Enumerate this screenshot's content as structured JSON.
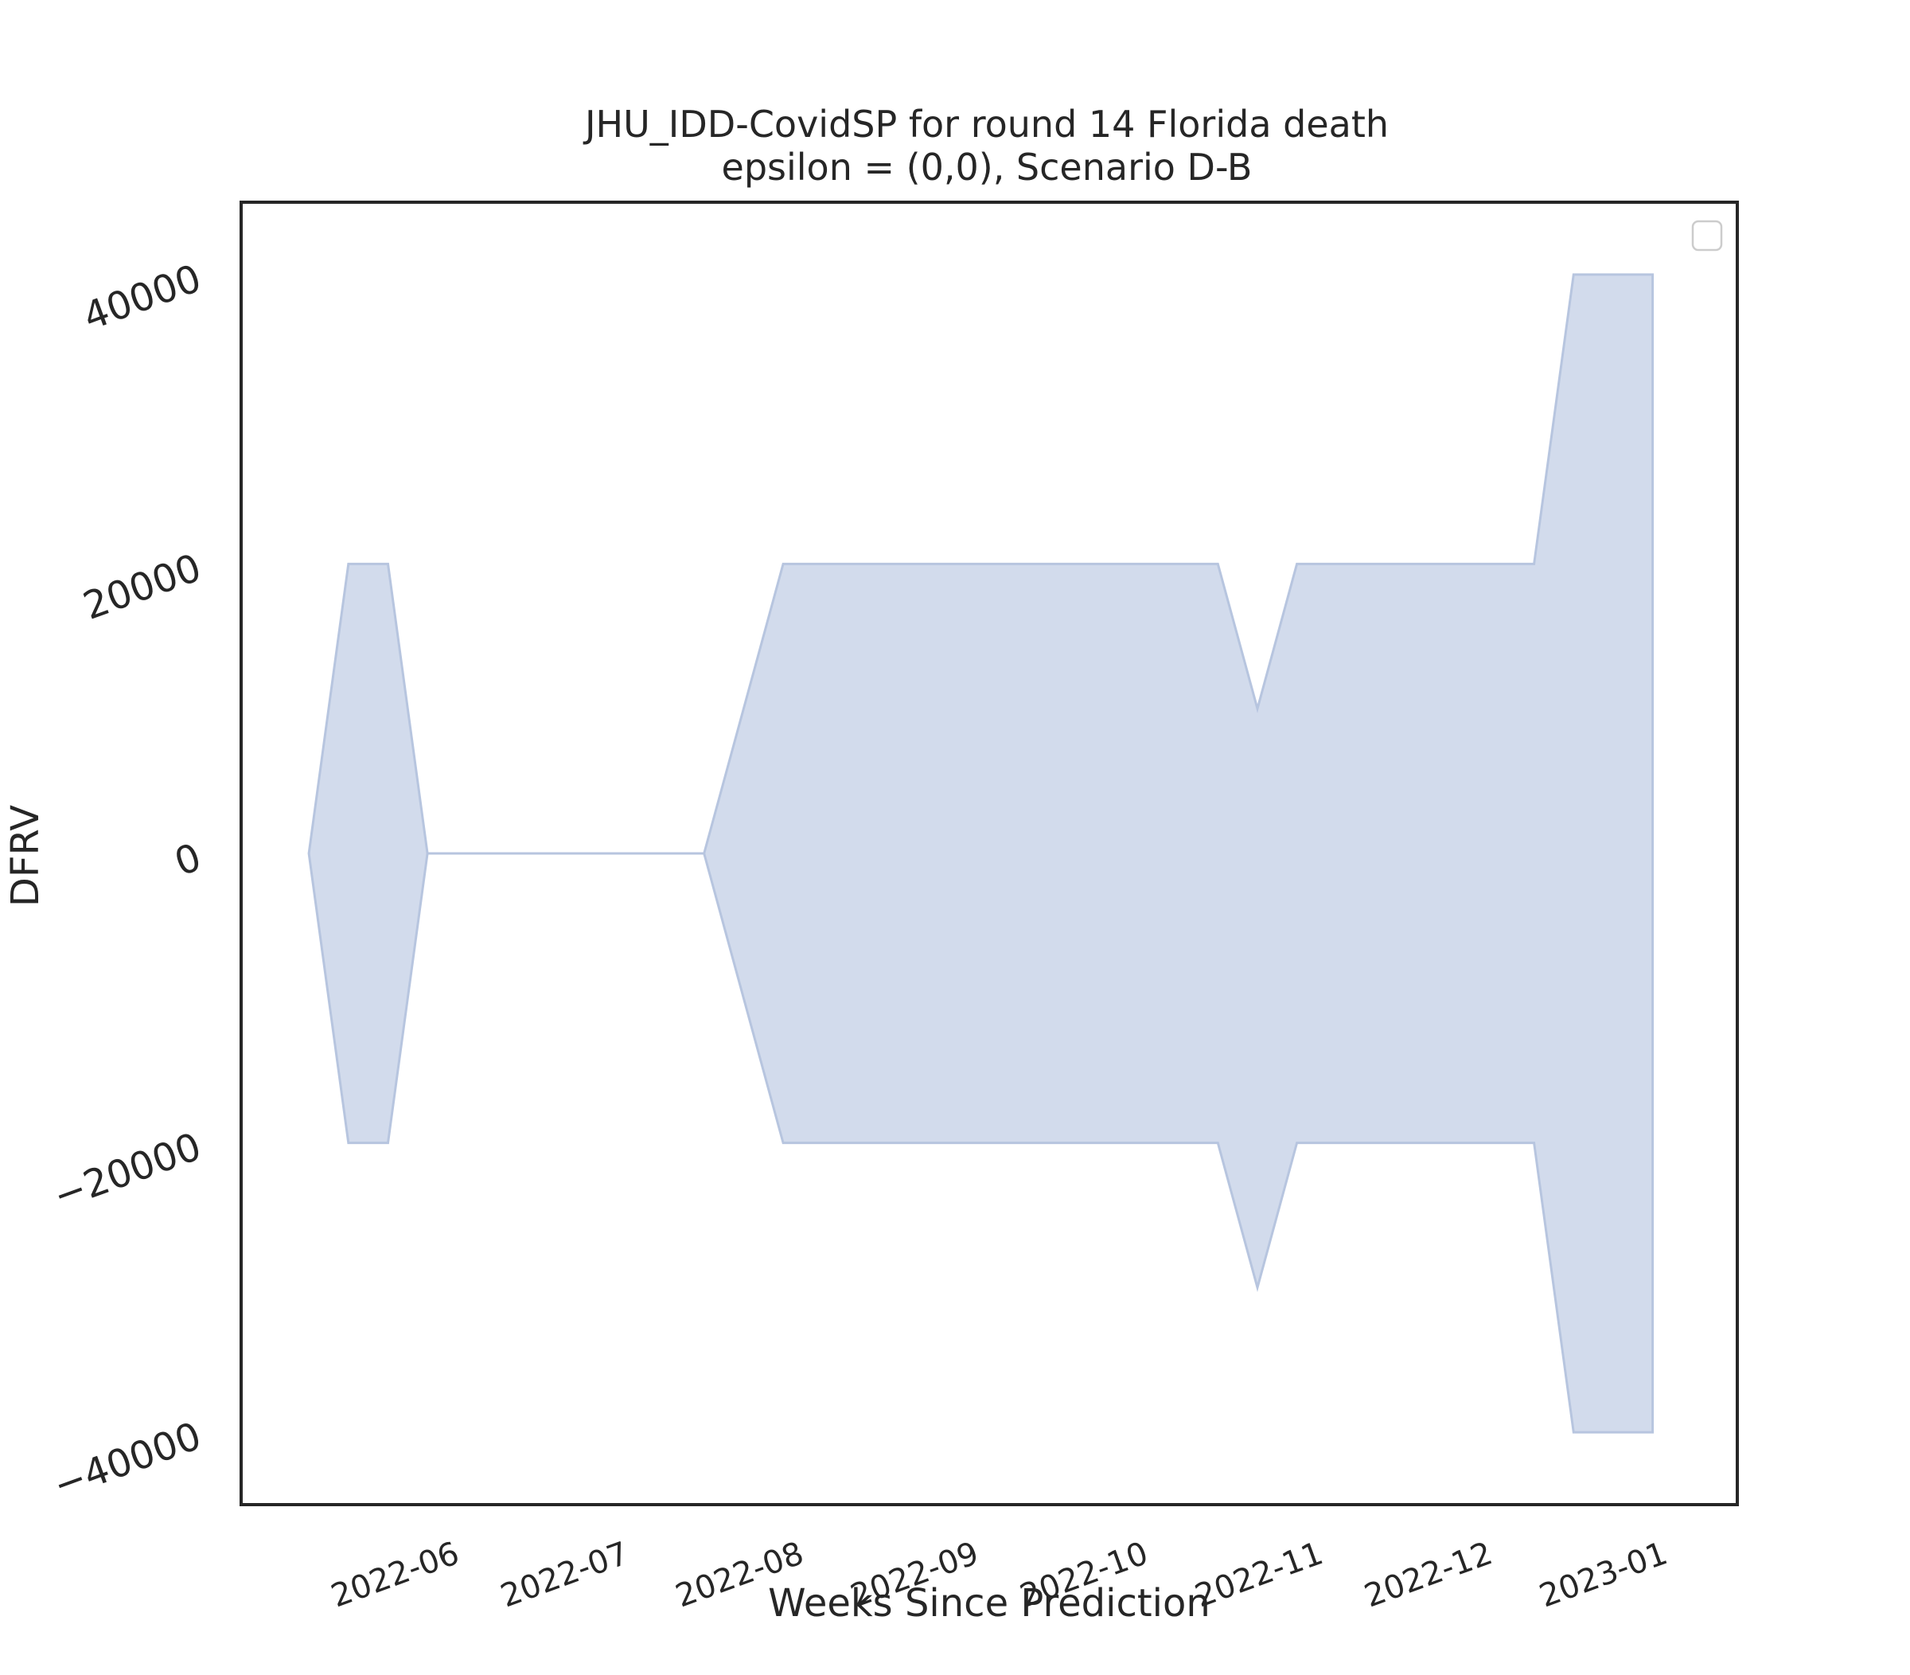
{
  "chart_data": {
    "type": "area",
    "title": "JHU_IDD-CovidSP for round 14 Florida death",
    "subtitle": "epsilon = (0,0), Scenario D-B",
    "xlabel": "Weeks Since Prediction",
    "ylabel": "DFRV",
    "ylim": [
      -45000,
      45000
    ],
    "xlim": [
      "2022-05-04",
      "2023-01-24"
    ],
    "grid": false,
    "legend": "top-right, empty",
    "x_ticks": [
      "2022-06",
      "2022-07",
      "2022-08",
      "2022-09",
      "2022-10",
      "2022-11",
      "2022-12",
      "2023-01"
    ],
    "x_tick_dates": [
      "2022-06-01",
      "2022-07-01",
      "2022-08-01",
      "2022-09-01",
      "2022-10-01",
      "2022-11-01",
      "2022-12-01",
      "2023-01-01"
    ],
    "y_ticks": [
      40000,
      20000,
      0,
      -20000,
      -40000
    ],
    "y_tick_labels": [
      "40000",
      "20000",
      "0",
      "−20000",
      "−40000"
    ],
    "series": [
      {
        "fill_color": "#d2dbec",
        "edge_color": "#b7c5df",
        "x": [
          "2022-05-16",
          "2022-05-23",
          "2022-05-30",
          "2022-06-06",
          "2022-06-13",
          "2022-06-20",
          "2022-06-27",
          "2022-07-04",
          "2022-07-11",
          "2022-07-18",
          "2022-07-25",
          "2022-08-01",
          "2022-08-08",
          "2022-08-15",
          "2022-08-22",
          "2022-08-29",
          "2022-09-05",
          "2022-09-12",
          "2022-09-19",
          "2022-09-26",
          "2022-10-03",
          "2022-10-10",
          "2022-10-17",
          "2022-10-24",
          "2022-10-31",
          "2022-11-07",
          "2022-11-14",
          "2022-11-21",
          "2022-11-28",
          "2022-12-05",
          "2022-12-12",
          "2022-12-19",
          "2022-12-26",
          "2023-01-02",
          "2023-01-09"
        ],
        "upper": [
          0,
          20000,
          20000,
          0,
          0,
          0,
          0,
          0,
          0,
          0,
          0,
          10000,
          20000,
          20000,
          20000,
          20000,
          20000,
          20000,
          20000,
          20000,
          20000,
          20000,
          20000,
          20000,
          10000,
          20000,
          20000,
          20000,
          20000,
          20000,
          20000,
          20000,
          40000,
          40000,
          40000
        ],
        "lower": [
          0,
          -20000,
          -20000,
          0,
          0,
          0,
          0,
          0,
          0,
          0,
          0,
          -10000,
          -20000,
          -20000,
          -20000,
          -20000,
          -20000,
          -20000,
          -20000,
          -20000,
          -20000,
          -20000,
          -20000,
          -20000,
          -30000,
          -20000,
          -20000,
          -20000,
          -20000,
          -20000,
          -20000,
          -20000,
          -40000,
          -40000,
          -40000
        ]
      }
    ]
  }
}
